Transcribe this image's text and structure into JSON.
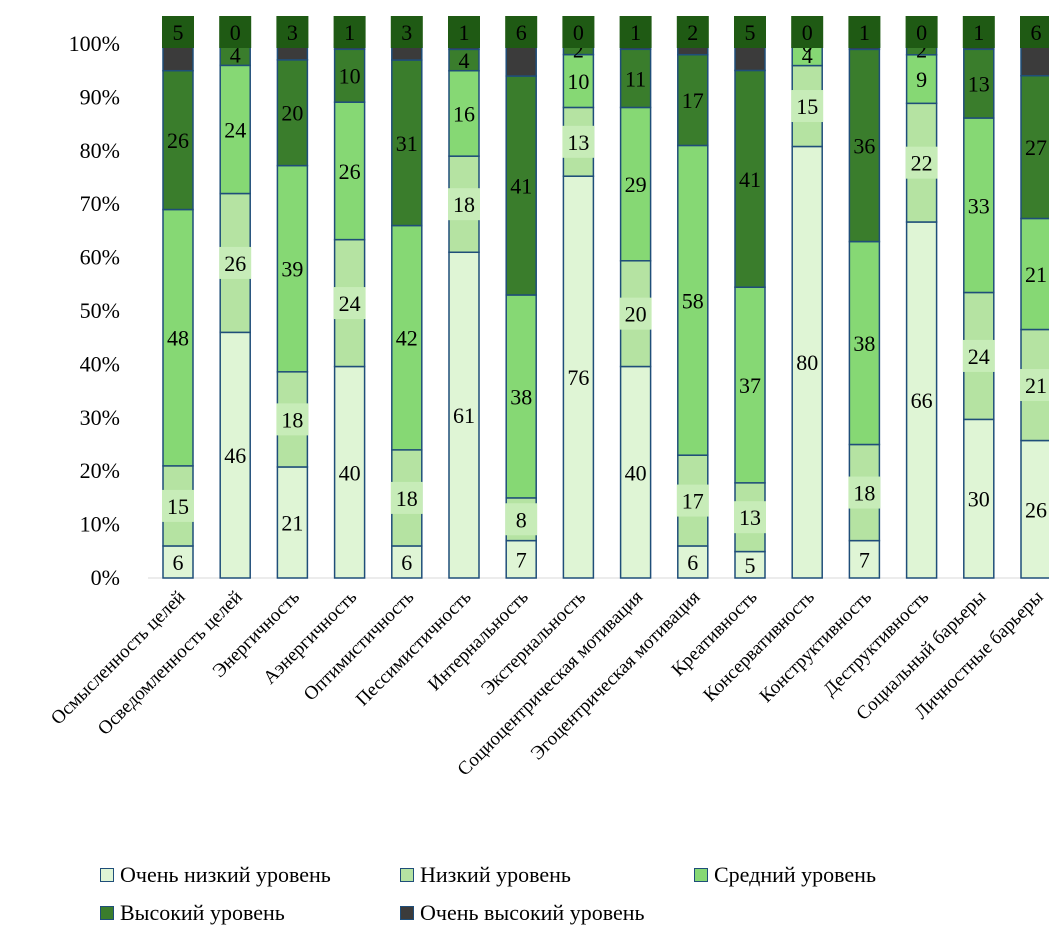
{
  "chart_data": {
    "type": "stacked-bar-100",
    "categories": [
      "Осмысленность целей",
      "Осведомленность целей",
      "Энергичность",
      "Аэнергичность",
      "Оптимистичность",
      "Пессимистичность",
      "Интернальность",
      "Экстернальность",
      "Социоцентрическая мотивация",
      "Эгоцентрическая мотивация",
      "Креативность",
      "Консервативность",
      "Конструктивность",
      "Деструктивность",
      "Социальный барьеры",
      "Личностные барьеры"
    ],
    "series": [
      {
        "name": "Очень низкий уровень",
        "color": "#dff5d5",
        "label_bg": "",
        "values": [
          6,
          46,
          21,
          40,
          6,
          61,
          7,
          76,
          40,
          6,
          5,
          80,
          7,
          66,
          30,
          26
        ]
      },
      {
        "name": "Низкий уровень",
        "color": "#b5e3a2",
        "label_bg": "#c7ecb8",
        "values": [
          15,
          26,
          18,
          24,
          18,
          18,
          8,
          13,
          20,
          17,
          13,
          15,
          18,
          22,
          24,
          21
        ]
      },
      {
        "name": "Средний уровень",
        "color": "#86d874",
        "label_bg": "",
        "values": [
          48,
          24,
          39,
          26,
          42,
          16,
          38,
          10,
          29,
          58,
          37,
          4,
          38,
          9,
          33,
          21
        ]
      },
      {
        "name": "Высокий уровень",
        "color": "#3a7d2c",
        "label_bg": "",
        "values": [
          26,
          4,
          20,
          10,
          31,
          4,
          41,
          2,
          11,
          17,
          41,
          0,
          36,
          2,
          13,
          27
        ]
      },
      {
        "name": "Очень высокий уровень",
        "color": "#3b3b3b",
        "label_bg": "#1f5a14",
        "values": [
          5,
          0,
          3,
          1,
          3,
          1,
          6,
          0,
          1,
          2,
          5,
          0,
          1,
          0,
          1,
          6
        ]
      }
    ],
    "ylim": [
      0,
      100
    ],
    "yticks": [
      "0%",
      "10%",
      "20%",
      "30%",
      "40%",
      "50%",
      "60%",
      "70%",
      "80%",
      "90%",
      "100%"
    ],
    "legend_position": "bottom",
    "border_color": "#1f4e79",
    "grid": false
  }
}
